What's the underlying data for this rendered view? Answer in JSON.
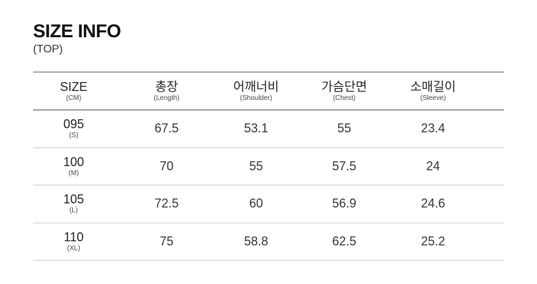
{
  "title": "SIZE INFO",
  "subtitle": "(TOP)",
  "headers": [
    {
      "label": "SIZE",
      "sub": "(CM)"
    },
    {
      "label": "총장",
      "sub": "(Length)"
    },
    {
      "label": "어깨너비",
      "sub": "(Shoulder)"
    },
    {
      "label": "가슴단면",
      "sub": "(Chest)"
    },
    {
      "label": "소매길이",
      "sub": "(Sleeve)"
    }
  ],
  "rows": [
    {
      "size": "095",
      "code": "(S)",
      "values": [
        "67.5",
        "53.1",
        "55",
        "23.4"
      ]
    },
    {
      "size": "100",
      "code": "(M)",
      "values": [
        "70",
        "55",
        "57.5",
        "24"
      ]
    },
    {
      "size": "105",
      "code": "(L)",
      "values": [
        "72.5",
        "60",
        "56.9",
        "24.6"
      ]
    },
    {
      "size": "110",
      "code": "(XL)",
      "values": [
        "75",
        "58.8",
        "62.5",
        "25.2"
      ]
    }
  ]
}
